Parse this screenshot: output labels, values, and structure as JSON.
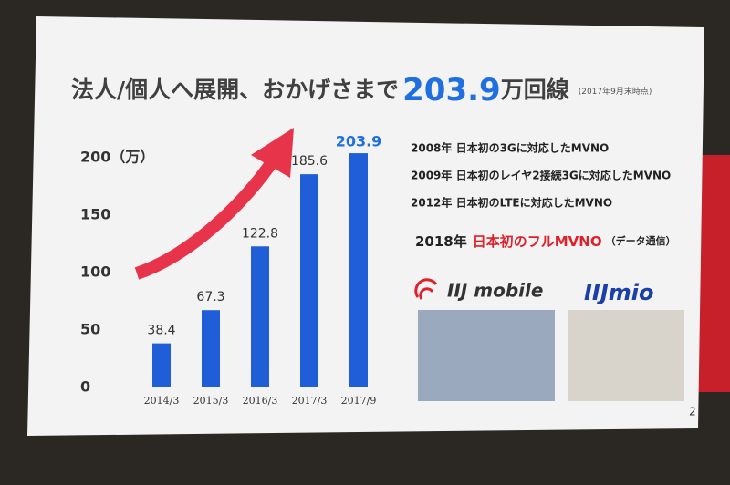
{
  "slide": {
    "title": {
      "lead": "法人/個人へ展開、おかげさまで",
      "figure": "203.9",
      "unit": "万回線",
      "note": "(2017年9月末時点)"
    },
    "milestones": [
      "2008年 日本初の3Gに対応したMVNO",
      "2009年 日本初のレイヤ2接続3Gに対応したMVNO",
      "2012年 日本初のLTEに対応したMVNO"
    ],
    "highlight": {
      "year": "2018年",
      "text": "日本初のフルMVNO",
      "note": "（データ通信）"
    },
    "brands": [
      "IIJ mobile",
      "IIJmio"
    ],
    "page": "2"
  },
  "chart_data": {
    "type": "bar",
    "categories": [
      "2014/3",
      "2015/3",
      "2016/3",
      "2017/3",
      "2017/9"
    ],
    "values": [
      38.4,
      67.3,
      122.8,
      185.6,
      203.9
    ],
    "color": "#1f5ed6",
    "highlight_color": "#1f6fe0",
    "ylim": [
      0,
      200
    ],
    "yticks": [
      0,
      50,
      100,
      150,
      {
        "value": 200,
        "label": "200（万）"
      }
    ],
    "grid": false
  }
}
